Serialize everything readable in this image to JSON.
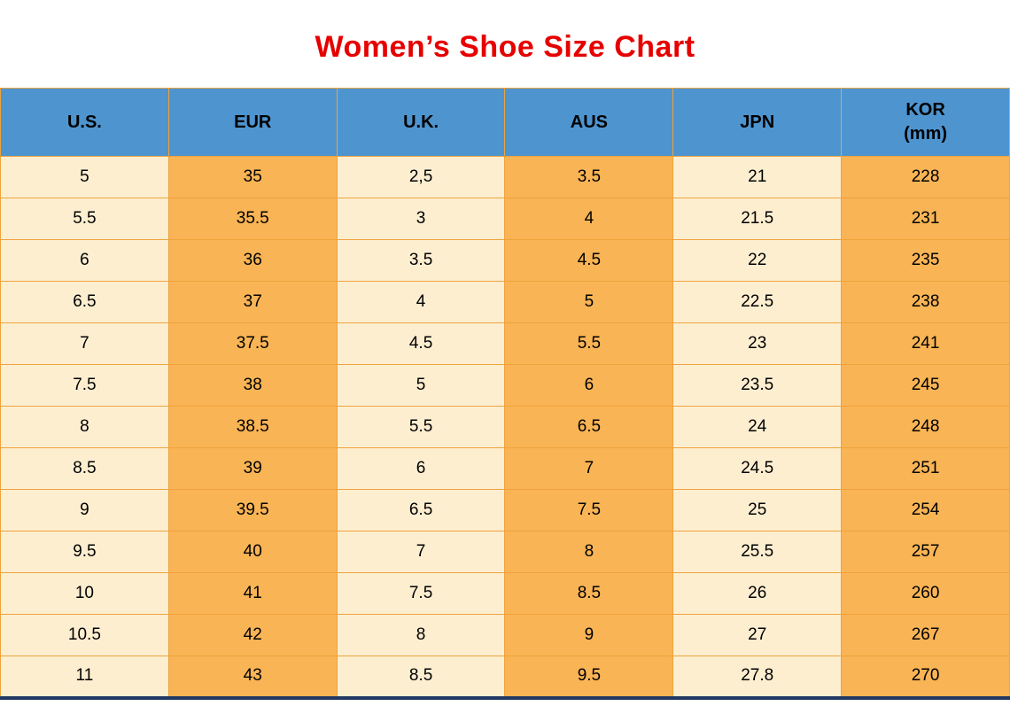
{
  "title": "Women’s Shoe Size Chart",
  "colors": {
    "title_color": "#e60000",
    "header_bg": "#4e95d0",
    "col_light": "#fdeed0",
    "col_orange": "#f8b455",
    "border_color": "#efa33d",
    "bottom_border": "#1f3864"
  },
  "chart_data": {
    "type": "table",
    "title": "Women’s Shoe Size Chart",
    "columns": [
      "U.S.",
      "EUR",
      "U.K.",
      "AUS",
      "JPN",
      "KOR\n(mm)"
    ],
    "rows": [
      [
        "5",
        "35",
        "2,5",
        "3.5",
        "21",
        "228"
      ],
      [
        "5.5",
        "35.5",
        "3",
        "4",
        "21.5",
        "231"
      ],
      [
        "6",
        "36",
        "3.5",
        "4.5",
        "22",
        "235"
      ],
      [
        "6.5",
        "37",
        "4",
        "5",
        "22.5",
        "238"
      ],
      [
        "7",
        "37.5",
        "4.5",
        "5.5",
        "23",
        "241"
      ],
      [
        "7.5",
        "38",
        "5",
        "6",
        "23.5",
        "245"
      ],
      [
        "8",
        "38.5",
        "5.5",
        "6.5",
        "24",
        "248"
      ],
      [
        "8.5",
        "39",
        "6",
        "7",
        "24.5",
        "251"
      ],
      [
        "9",
        "39.5",
        "6.5",
        "7.5",
        "25",
        "254"
      ],
      [
        "9.5",
        "40",
        "7",
        "8",
        "25.5",
        "257"
      ],
      [
        "10",
        "41",
        "7.5",
        "8.5",
        "26",
        "260"
      ],
      [
        "10.5",
        "42",
        "8",
        "9",
        "27",
        "267"
      ],
      [
        "11",
        "43",
        "8.5",
        "9.5",
        "27.8",
        "270"
      ]
    ]
  }
}
